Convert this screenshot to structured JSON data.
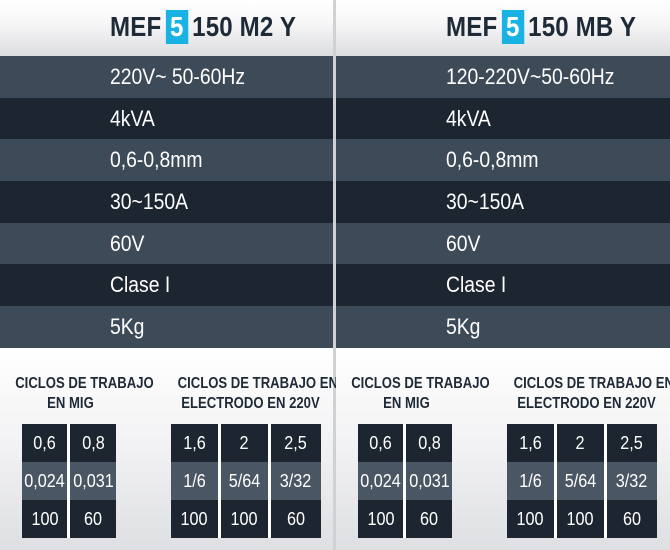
{
  "products": [
    {
      "title_prefix": "MEF",
      "title_number": "5",
      "title_suffix": "150 M2 Y",
      "specs": [
        "220V~ 50-60Hz",
        "4kVA",
        "0,6-0,8mm",
        "30~150A",
        "60V",
        "Clase I",
        "5Kg"
      ],
      "mig_title_line1": "CICLOS DE TRABAJO",
      "mig_title_line2": "EN MIG",
      "mig_rows": [
        [
          "0,6",
          "0,8"
        ],
        [
          "0,024",
          "0,031"
        ],
        [
          "100",
          "60"
        ]
      ],
      "electrode_title_line1": "CICLOS DE TRABAJO EN",
      "electrode_title_line2": "ELECTRODO EN 220V",
      "electrode_rows": [
        [
          "1,6",
          "2",
          "2,5"
        ],
        [
          "1/6",
          "5/64",
          "3/32"
        ],
        [
          "100",
          "100",
          "60"
        ]
      ]
    },
    {
      "title_prefix": "MEF",
      "title_number": "5",
      "title_suffix": "150 MB Y",
      "specs": [
        "120-220V~50-60Hz",
        "4kVA",
        "0,6-0,8mm",
        "30~150A",
        "60V",
        "Clase I",
        "5Kg"
      ],
      "mig_title_line1": "CICLOS DE TRABAJO",
      "mig_title_line2": "EN MIG",
      "mig_rows": [
        [
          "0,6",
          "0,8"
        ],
        [
          "0,024",
          "0,031"
        ],
        [
          "100",
          "60"
        ]
      ],
      "electrode_title_line1": "CICLOS DE TRABAJO EN",
      "electrode_title_line2": "ELECTRODO EN 220V",
      "electrode_rows": [
        [
          "1,6",
          "2",
          "2,5"
        ],
        [
          "1/6",
          "5/64",
          "3/32"
        ],
        [
          "100",
          "100",
          "60"
        ]
      ]
    }
  ],
  "colors": {
    "accent": "#18b3e4",
    "row_light": "#3d4a58",
    "row_dark": "#1c2530",
    "title_text": "#1e2a36"
  }
}
